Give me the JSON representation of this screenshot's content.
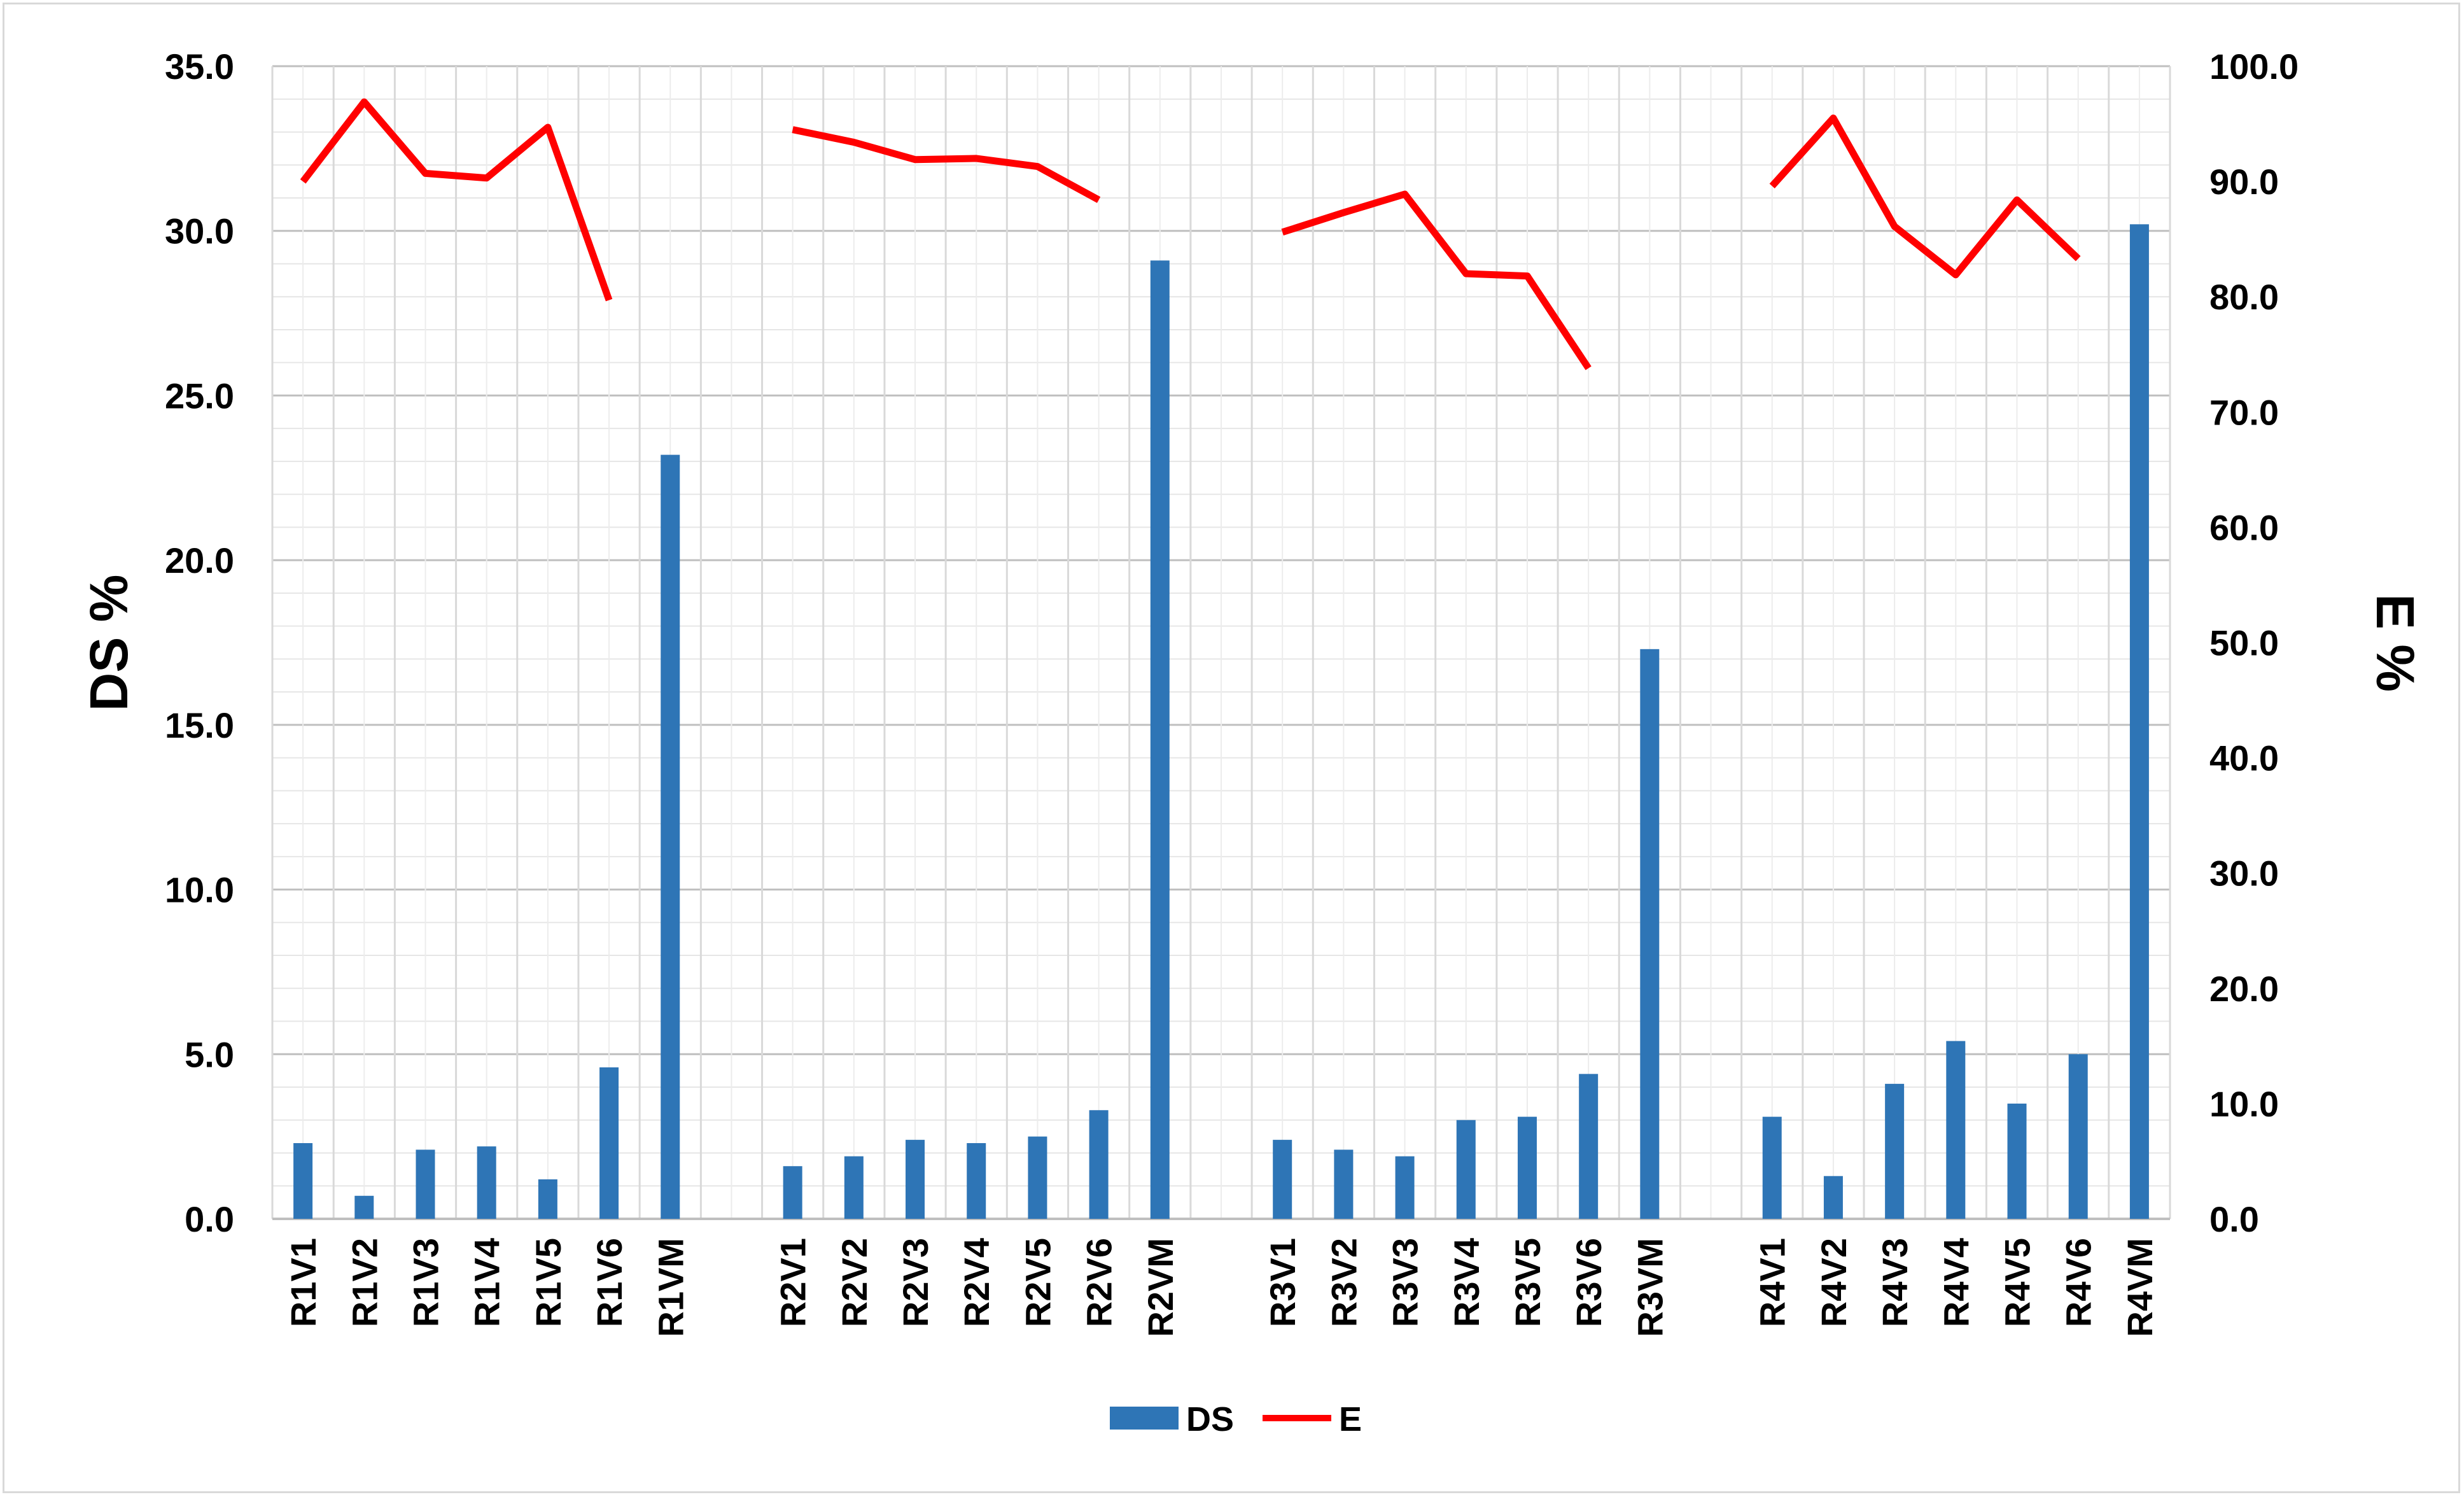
{
  "chart_data": {
    "type": "bar",
    "categories": [
      "R1V1",
      "R1V2",
      "R1V3",
      "R1V4",
      "R1V5",
      "R1V6",
      "R1VM",
      "",
      "R2V1",
      "R2V2",
      "R2V3",
      "R2V4",
      "R2V5",
      "R2V6",
      "R2VM",
      "",
      "R3V1",
      "R3V2",
      "R3V3",
      "R3V4",
      "R3V5",
      "R3V6",
      "R3VM",
      "",
      "R4V1",
      "R4V2",
      "R4V3",
      "R4V4",
      "R4V5",
      "R4V6",
      "R4VM"
    ],
    "series": [
      {
        "name": "DS",
        "type": "bar",
        "axis": "left",
        "color": "#2e75b6",
        "values": [
          2.3,
          0.7,
          2.1,
          2.2,
          1.2,
          4.6,
          23.2,
          null,
          1.6,
          1.9,
          2.4,
          2.3,
          2.5,
          3.3,
          29.1,
          null,
          2.4,
          2.1,
          1.9,
          3.0,
          3.1,
          4.4,
          17.3,
          null,
          3.1,
          1.3,
          4.1,
          5.4,
          3.5,
          5.0,
          30.2
        ]
      },
      {
        "name": "E",
        "type": "line",
        "axis": "right",
        "color": "#ff0000",
        "values": [
          90.0,
          96.9,
          90.7,
          90.3,
          94.7,
          79.7,
          null,
          null,
          94.5,
          93.4,
          91.9,
          92.0,
          91.3,
          88.4,
          null,
          null,
          85.6,
          87.3,
          88.9,
          82.0,
          81.8,
          73.8,
          null,
          null,
          89.6,
          95.5,
          86.1,
          81.9,
          88.4,
          83.3,
          null
        ]
      }
    ],
    "ylabel": "DS %",
    "y2label": "E %",
    "ylim": [
      0,
      35
    ],
    "y2lim": [
      0,
      100
    ],
    "yticks": [
      "0.0",
      "5.0",
      "10.0",
      "15.0",
      "20.0",
      "25.0",
      "30.0",
      "35.0"
    ],
    "y2ticks": [
      "0.0",
      "10.0",
      "20.0",
      "30.0",
      "40.0",
      "50.0",
      "60.0",
      "70.0",
      "80.0",
      "90.0",
      "100.0"
    ],
    "grid": true,
    "legend": "bottom",
    "legend_items": [
      {
        "label": "DS",
        "type": "bar",
        "color": "#2e75b6"
      },
      {
        "label": "E",
        "type": "line",
        "color": "#ff0000"
      }
    ]
  }
}
